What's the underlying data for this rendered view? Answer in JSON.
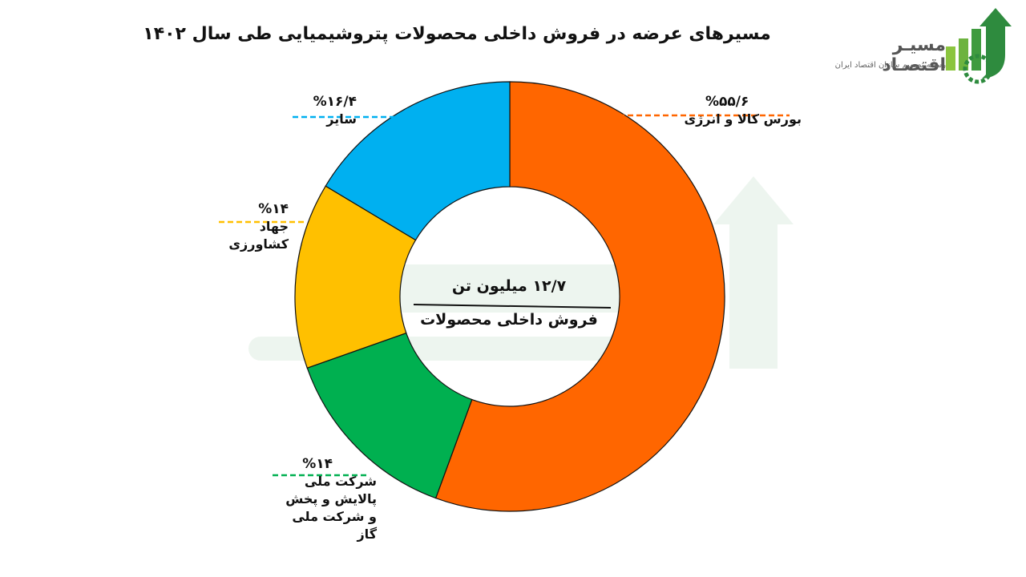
{
  "title": "مسیرهای عرضه در فروش داخلی محصولات پتروشیمیایی طی سال ۱۴۰۲",
  "logo": {
    "name": "مسیـر اقتصـاد",
    "tagline": "رسانه تصمیم سازان اقتصاد ایران",
    "icon": "rising-bars-arrow-gear-icon"
  },
  "center": {
    "total": "۱۲/۷ میلیون تن",
    "subtitle": "فروش داخلی محصولات"
  },
  "chart_data": {
    "type": "pie",
    "donut": true,
    "legend_position": "labels around the ring",
    "slices": [
      {
        "label": "بورس کالا و انرژی",
        "value": 55.6,
        "display": "%۵۵/۶",
        "color": "#FF6600"
      },
      {
        "label": "شرکت ملی پالایش و پخش و شرکت ملی گاز",
        "value": 14,
        "display": "%۱۴",
        "color": "#00B050"
      },
      {
        "label": "جهاد کشاورزی",
        "value": 14,
        "display": "%۱۴",
        "color": "#FFC000"
      },
      {
        "label": "سایر",
        "value": 16.4,
        "display": "%۱۶/۴",
        "color": "#00B0F0"
      }
    ]
  }
}
